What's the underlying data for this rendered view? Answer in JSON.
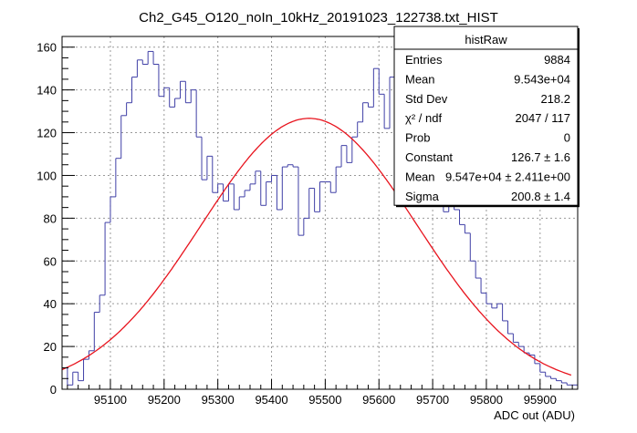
{
  "chart_data": {
    "type": "histogram",
    "title": "Ch2_G45_O120_noIn_10kHz_20191023_122738.txt_HIST",
    "xlabel": "ADC out (ADU)",
    "ylabel": "",
    "xlim": [
      95010,
      95970
    ],
    "ylim": [
      0,
      165
    ],
    "grid": true,
    "x_ticks": [
      95100,
      95200,
      95300,
      95400,
      95500,
      95600,
      95700,
      95800,
      95900
    ],
    "y_ticks": [
      0,
      20,
      40,
      60,
      80,
      100,
      120,
      140,
      160
    ],
    "colors": {
      "histogram": "#3f3fa6",
      "fit": "#e8141e",
      "grid": "#999999"
    },
    "histogram": {
      "bin_start": 95010,
      "bin_width": 10,
      "counts": [
        10,
        2,
        8,
        4,
        14,
        18,
        36,
        44,
        78,
        90,
        108,
        128,
        134,
        146,
        154,
        152,
        158,
        152,
        137,
        141,
        132,
        136,
        144,
        134,
        140,
        118,
        98,
        109,
        92,
        96,
        88,
        96,
        84,
        90,
        93,
        96,
        102,
        86,
        97,
        100,
        84,
        104,
        105,
        104,
        72,
        80,
        94,
        83,
        97,
        97,
        92,
        104,
        114,
        106,
        118,
        125,
        134,
        132,
        150,
        138,
        122,
        146,
        126,
        134,
        132,
        106,
        103,
        93,
        86,
        93,
        104,
        83,
        86,
        84,
        77,
        73,
        60,
        52,
        45,
        40,
        38,
        40,
        32,
        26,
        22,
        20,
        17,
        16,
        12,
        8,
        6,
        5,
        4,
        3,
        2,
        2
      ]
    },
    "fit": {
      "constant": 126.7,
      "mean": 95470,
      "sigma": 200.8,
      "x_range": [
        95010,
        95960
      ]
    }
  },
  "stats_box": {
    "title": "histRaw",
    "rows": [
      {
        "label": "Entries",
        "value": "9884"
      },
      {
        "label": "Mean",
        "value": "9.543e+04"
      },
      {
        "label": "Std Dev",
        "value": "218.2"
      },
      {
        "label": "χ² / ndf",
        "value": "2047 / 117"
      },
      {
        "label": "Prob",
        "value": "0"
      },
      {
        "label": "Constant",
        "value": "126.7 ± 1.6"
      },
      {
        "label": "Mean",
        "value": "9.547e+04 ± 2.411e+00"
      },
      {
        "label": "Sigma",
        "value": "200.8 ± 1.4"
      }
    ]
  }
}
